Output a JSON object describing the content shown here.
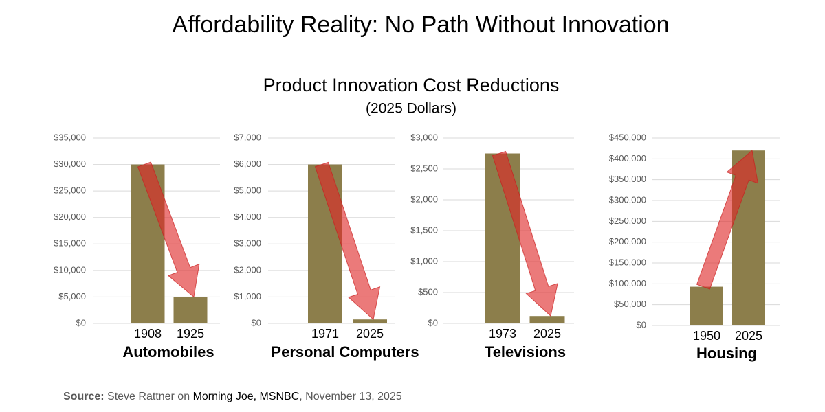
{
  "header": {
    "title": "Affordability Reality: No Path Without Innovation",
    "subtitle": "Product Innovation Cost Reductions",
    "note": "(2025 Dollars)"
  },
  "chart_data": [
    {
      "type": "bar",
      "xlabel": "Automobiles",
      "categories": [
        "1908",
        "1925"
      ],
      "values": [
        30000,
        5000
      ],
      "color": "#8c7e4b",
      "ylim": [
        0,
        35000
      ],
      "yticks": [
        {
          "value": 0,
          "label": "$0"
        },
        {
          "value": 5000,
          "label": "$5,000"
        },
        {
          "value": 10000,
          "label": "$10,000"
        },
        {
          "value": 15000,
          "label": "$15,000"
        },
        {
          "value": 20000,
          "label": "$20,000"
        },
        {
          "value": 25000,
          "label": "$25,000"
        },
        {
          "value": 30000,
          "label": "$30,000"
        },
        {
          "value": 35000,
          "label": "$35,000"
        }
      ],
      "grid": true
    },
    {
      "type": "bar",
      "xlabel": "Personal Computers",
      "categories": [
        "1971",
        "2025"
      ],
      "values": [
        6000,
        150
      ],
      "color": "#8c7e4b",
      "ylim": [
        0,
        7000
      ],
      "yticks": [
        {
          "value": 0,
          "label": "$0"
        },
        {
          "value": 1000,
          "label": "$1,000"
        },
        {
          "value": 2000,
          "label": "$2,000"
        },
        {
          "value": 3000,
          "label": "$3,000"
        },
        {
          "value": 4000,
          "label": "$4,000"
        },
        {
          "value": 5000,
          "label": "$5,000"
        },
        {
          "value": 6000,
          "label": "$6,000"
        },
        {
          "value": 7000,
          "label": "$7,000"
        }
      ],
      "grid": true
    },
    {
      "type": "bar",
      "xlabel": "Televisions",
      "categories": [
        "1973",
        "2025"
      ],
      "values": [
        2750,
        120
      ],
      "color": "#8c7e4b",
      "ylim": [
        0,
        3000
      ],
      "yticks": [
        {
          "value": 0,
          "label": "$0"
        },
        {
          "value": 500,
          "label": "$500"
        },
        {
          "value": 1000,
          "label": "$1,000"
        },
        {
          "value": 1500,
          "label": "$1,500"
        },
        {
          "value": 2000,
          "label": "$2,000"
        },
        {
          "value": 2500,
          "label": "$2,500"
        },
        {
          "value": 3000,
          "label": "$3,000"
        }
      ],
      "grid": true
    },
    {
      "type": "bar",
      "xlabel": "Housing",
      "categories": [
        "1950",
        "2025"
      ],
      "values": [
        93000,
        420000
      ],
      "color": "#8c7e4b",
      "ylim": [
        0,
        450000
      ],
      "yticks": [
        {
          "value": 0,
          "label": "$0"
        },
        {
          "value": 50000,
          "label": "$50,000"
        },
        {
          "value": 100000,
          "label": "$100,000"
        },
        {
          "value": 150000,
          "label": "$150,000"
        },
        {
          "value": 200000,
          "label": "$200,000"
        },
        {
          "value": 250000,
          "label": "$250,000"
        },
        {
          "value": 300000,
          "label": "$300,000"
        },
        {
          "value": 350000,
          "label": "$350,000"
        },
        {
          "value": 400000,
          "label": "$400,000"
        },
        {
          "value": 450000,
          "label": "$450,000"
        }
      ],
      "grid": true
    }
  ],
  "source": {
    "label": "Source:",
    "text1": "Steve Rattner on",
    "highlight": "Morning Joe, MSNBC",
    "text2": ", November 13, 2025"
  }
}
